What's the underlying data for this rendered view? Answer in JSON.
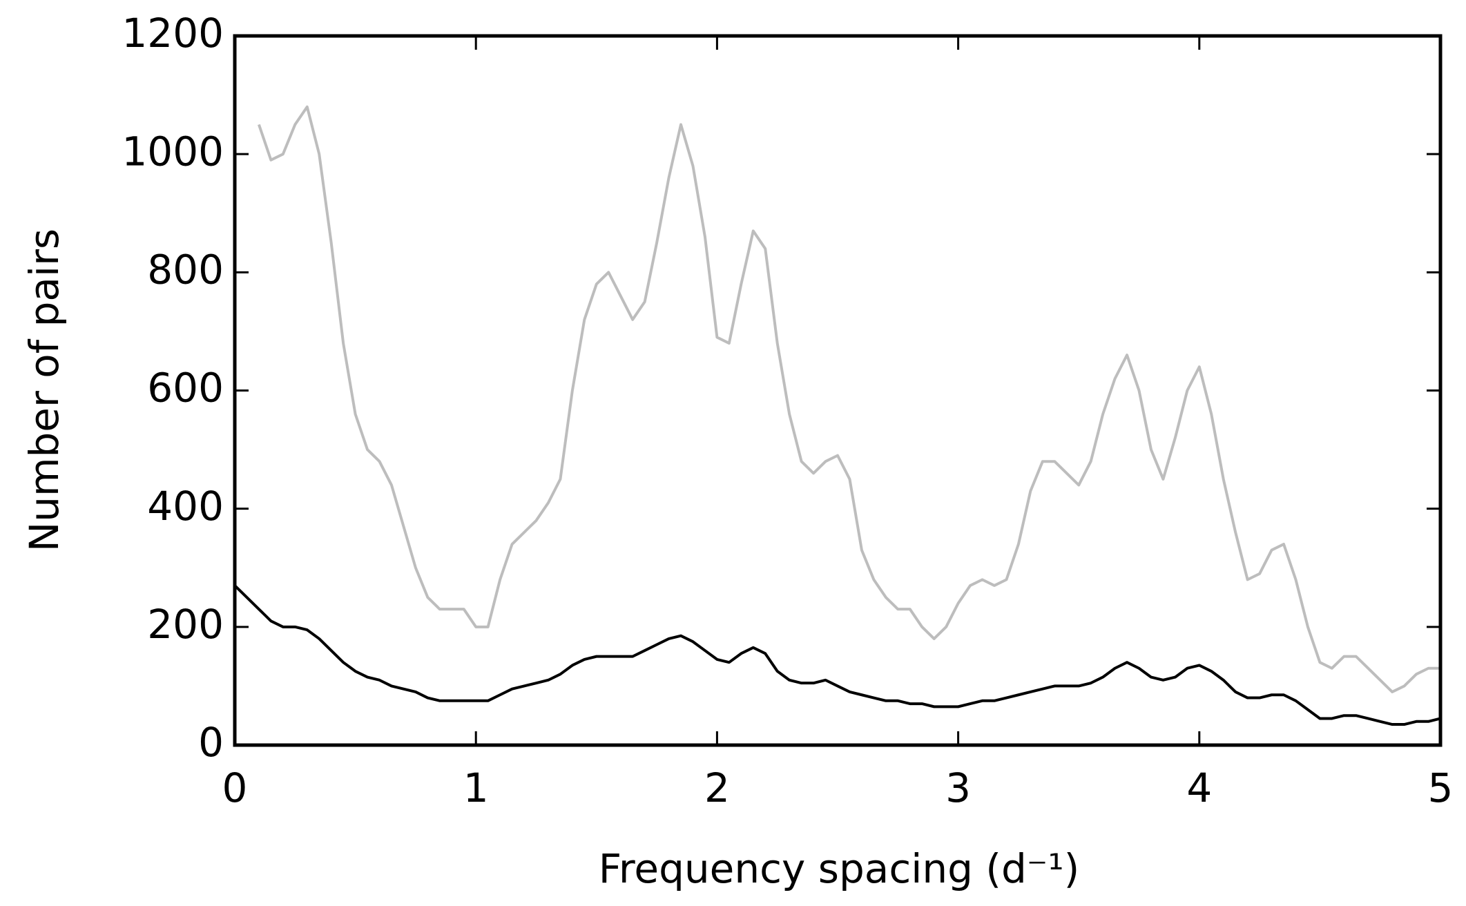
{
  "chart_data": {
    "type": "line",
    "xlabel": "Frequency spacing (d⁻¹)",
    "ylabel": "Number of pairs",
    "x": [
      0,
      0.05,
      0.1,
      0.15,
      0.2,
      0.25,
      0.3,
      0.35,
      0.4,
      0.45,
      0.5,
      0.55,
      0.6,
      0.65,
      0.7,
      0.75,
      0.8,
      0.85,
      0.9,
      0.95,
      1,
      1.05,
      1.1,
      1.15,
      1.2,
      1.25,
      1.3,
      1.35,
      1.4,
      1.45,
      1.5,
      1.55,
      1.6,
      1.65,
      1.7,
      1.75,
      1.8,
      1.85,
      1.9,
      1.95,
      2,
      2.05,
      2.1,
      2.15,
      2.2,
      2.25,
      2.3,
      2.35,
      2.4,
      2.45,
      2.5,
      2.55,
      2.6,
      2.65,
      2.7,
      2.75,
      2.8,
      2.85,
      2.9,
      2.95,
      3,
      3.05,
      3.1,
      3.15,
      3.2,
      3.25,
      3.3,
      3.35,
      3.4,
      3.45,
      3.5,
      3.55,
      3.6,
      3.65,
      3.7,
      3.75,
      3.8,
      3.85,
      3.9,
      3.95,
      4,
      4.05,
      4.1,
      4.15,
      4.2,
      4.25,
      4.3,
      4.35,
      4.4,
      4.45,
      4.5,
      4.55,
      4.6,
      4.65,
      4.7,
      4.75,
      4.8,
      4.85,
      4.9,
      4.95,
      5
    ],
    "series": [
      {
        "color": "#bdbdbd",
        "values": [
          null,
          null,
          1050,
          990,
          1000,
          1050,
          1080,
          1000,
          850,
          680,
          560,
          500,
          480,
          440,
          370,
          300,
          250,
          230,
          230,
          230,
          200,
          200,
          280,
          340,
          360,
          380,
          410,
          450,
          600,
          720,
          780,
          800,
          760,
          720,
          750,
          850,
          960,
          1050,
          980,
          860,
          690,
          680,
          780,
          870,
          840,
          680,
          560,
          480,
          460,
          480,
          490,
          450,
          330,
          280,
          250,
          230,
          230,
          200,
          180,
          200,
          240,
          270,
          280,
          270,
          280,
          340,
          430,
          480,
          480,
          460,
          440,
          480,
          560,
          620,
          660,
          600,
          500,
          450,
          520,
          600,
          640,
          560,
          450,
          360,
          280,
          290,
          330,
          340,
          280,
          200,
          140,
          130,
          150,
          150,
          130,
          110,
          90,
          100,
          120,
          130,
          130
        ]
      },
      {
        "color": "#000000",
        "values": [
          270,
          250,
          230,
          210,
          200,
          200,
          195,
          180,
          160,
          140,
          125,
          115,
          110,
          100,
          95,
          90,
          80,
          75,
          75,
          75,
          75,
          75,
          85,
          95,
          100,
          105,
          110,
          120,
          135,
          145,
          150,
          150,
          150,
          150,
          160,
          170,
          180,
          185,
          175,
          160,
          145,
          140,
          155,
          165,
          155,
          125,
          110,
          105,
          105,
          110,
          100,
          90,
          85,
          80,
          75,
          75,
          70,
          70,
          65,
          65,
          65,
          70,
          75,
          75,
          80,
          85,
          90,
          95,
          100,
          100,
          100,
          105,
          115,
          130,
          140,
          130,
          115,
          110,
          115,
          130,
          135,
          125,
          110,
          90,
          80,
          80,
          85,
          85,
          75,
          60,
          45,
          45,
          50,
          50,
          45,
          40,
          35,
          35,
          40,
          40,
          45
        ]
      }
    ],
    "xlim": [
      0,
      5
    ],
    "ylim": [
      0,
      1200
    ],
    "xticks": [
      0,
      1,
      2,
      3,
      4,
      5
    ],
    "yticks": [
      0,
      200,
      400,
      600,
      800,
      1000,
      1200
    ]
  }
}
